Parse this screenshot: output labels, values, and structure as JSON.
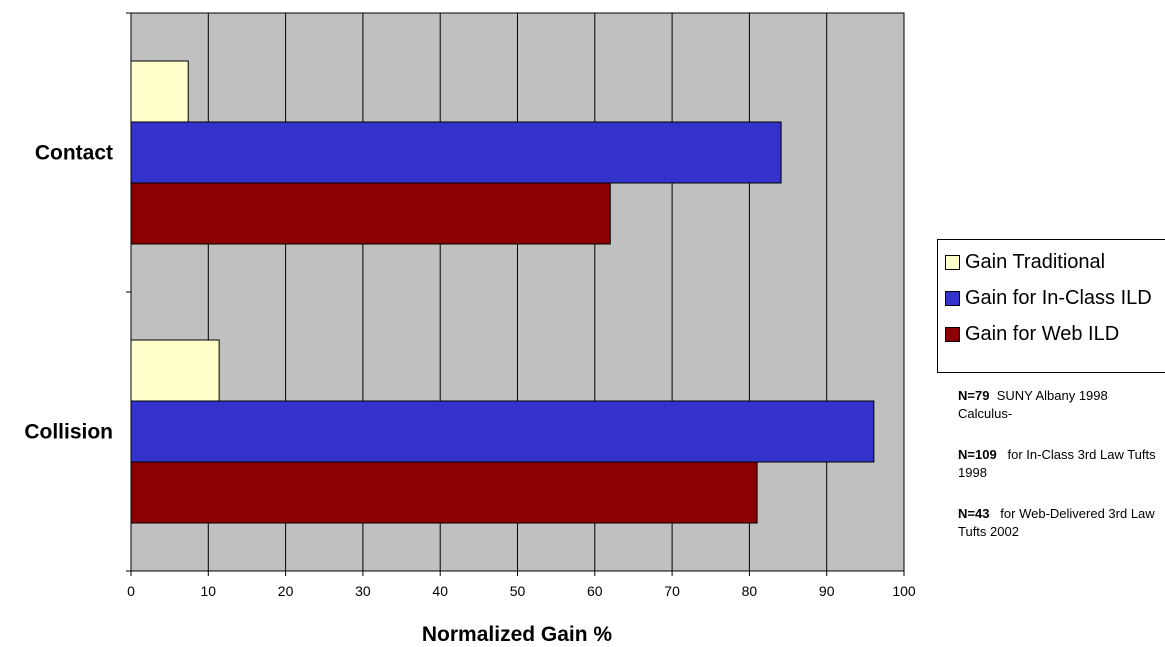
{
  "chart_data": {
    "type": "bar",
    "orientation": "horizontal",
    "categories": [
      "Contact",
      "Collision"
    ],
    "series": [
      {
        "name": "Gain Traditional",
        "color": "#ffffcc",
        "values": [
          7.4,
          11.4
        ]
      },
      {
        "name": "Gain for In-Class ILD",
        "color": "#3333cc",
        "values": [
          84.1,
          96.1
        ]
      },
      {
        "name": "Gain for Web ILD",
        "color": "#8b0000",
        "values": [
          62.0,
          81.0
        ]
      }
    ],
    "xlabel": "Normalized Gain %",
    "xlim": [
      0,
      100
    ],
    "xticks": [
      0,
      10,
      20,
      30,
      40,
      50,
      60,
      70,
      80,
      90,
      100
    ],
    "grid": true,
    "plot_background": "#c0c0c0",
    "legend_position": "right"
  },
  "notes": [
    {
      "n": "N=79",
      "text": "SUNY Albany 1998 Calculus-"
    },
    {
      "n": "N=109",
      "text": "for In-Class 3rd Law Tufts 1998"
    },
    {
      "n": "N=43",
      "text": "for Web-Delivered 3rd Law Tufts 2002"
    }
  ]
}
